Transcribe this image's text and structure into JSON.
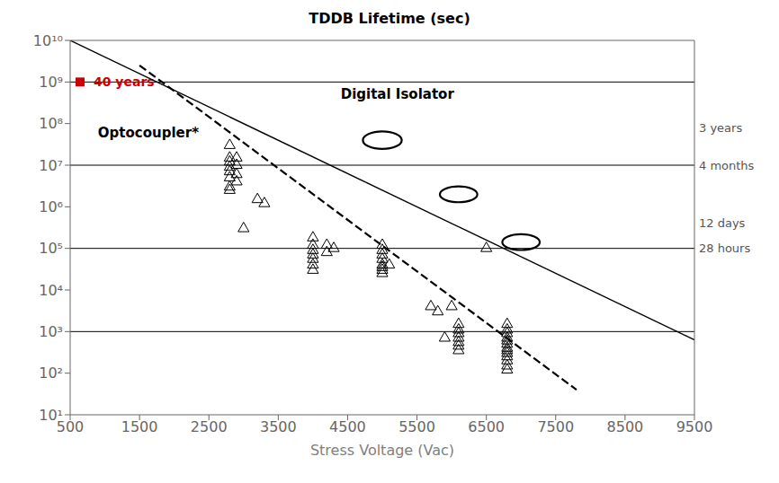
{
  "chart_data": {
    "type": "scatter",
    "title": "TDDB Lifetime (sec)",
    "x_label": "Stress Voltage (Vac)",
    "xlim": [
      500,
      9500
    ],
    "xticks": [
      500,
      1500,
      2500,
      3500,
      4500,
      5500,
      6500,
      7500,
      8500,
      9500
    ],
    "log": "y",
    "ylim": [
      10,
      10000000000
    ],
    "yticks": [
      {
        "value": 10,
        "label": "10¹"
      },
      {
        "value": 100,
        "label": "10²"
      },
      {
        "value": 1000,
        "label": "10³"
      },
      {
        "value": 10000,
        "label": "10⁴"
      },
      {
        "value": 100000,
        "label": "10⁵"
      },
      {
        "value": 1000000,
        "label": "10⁶"
      },
      {
        "value": 10000000,
        "label": "10⁷"
      },
      {
        "value": 100000000,
        "label": "10⁸"
      },
      {
        "value": 1000000000,
        "label": "10⁹"
      },
      {
        "value": 10000000000,
        "label": "10¹⁰"
      }
    ],
    "series": [
      {
        "type": "scatter",
        "marker": "triangle",
        "color": "#000000",
        "x": [
          2800,
          2800,
          2800,
          2800,
          2800,
          2800,
          2800,
          2800,
          2900,
          2900,
          2900,
          2900,
          3000,
          3200,
          3300,
          4000,
          4000,
          4000,
          4000,
          4000,
          4000,
          4000,
          4200,
          4200,
          4300,
          5000,
          5000,
          5000,
          5000,
          5000,
          5000,
          5000,
          5000,
          5100,
          5700,
          5800,
          5900,
          6000,
          6100,
          6100,
          6100,
          6100,
          6100,
          6100,
          6100,
          6500,
          6800,
          6800,
          6800,
          6800,
          6800,
          6800,
          6800,
          6800,
          6800,
          6800,
          6800,
          6800,
          6800
        ],
        "values": [
          30000000,
          15000000,
          12000000,
          9000000,
          7000000,
          5000000,
          3000000,
          2500000,
          15000000,
          10000000,
          6000000,
          4000000,
          300000,
          1500000,
          1200000,
          180000,
          120000,
          90000,
          70000,
          55000,
          40000,
          30000,
          120000,
          80000,
          100000,
          120000,
          90000,
          70000,
          55000,
          40000,
          35000,
          30000,
          25000,
          40000,
          4000,
          3000,
          700,
          4000,
          1500,
          1100,
          900,
          700,
          550,
          450,
          350,
          100000,
          1500,
          1100,
          900,
          700,
          600,
          500,
          400,
          350,
          300,
          250,
          200,
          150,
          120
        ]
      },
      {
        "type": "line",
        "line_style": "solid",
        "color": "#000000",
        "x": [
          500,
          9500
        ],
        "values": [
          10000000000,
          630.957344480193
        ]
      },
      {
        "type": "line",
        "line_style": "dashed",
        "color": "#000000",
        "x": [
          1500,
          7800
        ],
        "values": [
          2511886431.50958,
          39.8107170553497
        ]
      }
    ],
    "reference_lines": [
      {
        "y": 10000000
      },
      {
        "y": 100000
      },
      {
        "y": 1000
      },
      {
        "y": 1000000000,
        "label": "40 years",
        "color": "#cc0000",
        "marker": "square"
      }
    ],
    "right_labels": [
      {
        "y": 80000000,
        "text": "3 years"
      },
      {
        "y": 10000000,
        "text": "4 months"
      },
      {
        "y": 400000,
        "text": "12 days"
      },
      {
        "y": 100000,
        "text": "28 hours"
      }
    ],
    "annotations": [
      {
        "x": 900,
        "y": 60255958.6074358,
        "text": "Optocoupler*"
      },
      {
        "x": 4400,
        "y": 501187233.627272,
        "text": "Digital Isolator"
      }
    ],
    "ellipses": [
      {
        "x": [
          4720,
          5280
        ],
        "y": [
          24547089.1568503,
          64565422.9034656
        ]
      },
      {
        "x": [
          5830,
          6370
        ],
        "y": [
          1288249.55169313,
          3090295.43251359
        ]
      },
      {
        "x": [
          6730,
          7270
        ],
        "y": [
          91201.0839355909,
          218776.162394955
        ]
      }
    ]
  }
}
